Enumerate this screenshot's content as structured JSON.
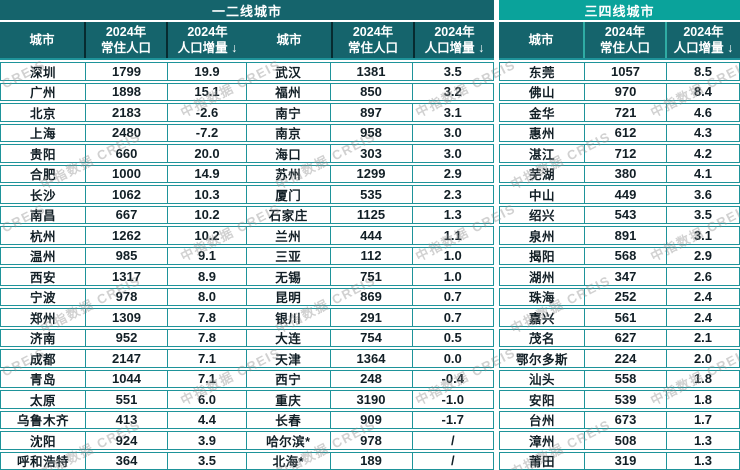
{
  "table": {
    "watermark": "中指数据 CREIS",
    "colors": {
      "header_dark_teal": "#15646c",
      "tier34_bright_teal": "#0aa39b",
      "row_border_teal": "#1e939a",
      "text_dark": "#121f26"
    },
    "header": {
      "city": "城市",
      "year": "2024年",
      "population": "常住人口",
      "delta": "人口增量",
      "sort_arrow": "↓"
    },
    "sections": [
      {
        "title": "一二线城市",
        "subtables": [
          {
            "rows": [
              [
                "深圳",
                "1799",
                "19.9"
              ],
              [
                "广州",
                "1898",
                "15.1"
              ],
              [
                "北京",
                "2183",
                "-2.6"
              ],
              [
                "上海",
                "2480",
                "-7.2"
              ],
              [
                "贵阳",
                "660",
                "20.0"
              ],
              [
                "合肥",
                "1000",
                "14.9"
              ],
              [
                "长沙",
                "1062",
                "10.3"
              ],
              [
                "南昌",
                "667",
                "10.2"
              ],
              [
                "杭州",
                "1262",
                "10.2"
              ],
              [
                "温州",
                "985",
                "9.1"
              ],
              [
                "西安",
                "1317",
                "8.9"
              ],
              [
                "宁波",
                "978",
                "8.0"
              ],
              [
                "郑州",
                "1309",
                "7.8"
              ],
              [
                "济南",
                "952",
                "7.8"
              ],
              [
                "成都",
                "2147",
                "7.1"
              ],
              [
                "青岛",
                "1044",
                "7.1"
              ],
              [
                "太原",
                "551",
                "6.0"
              ],
              [
                "乌鲁木齐",
                "413",
                "4.4"
              ],
              [
                "沈阳",
                "924",
                "3.9"
              ],
              [
                "呼和浩特",
                "364",
                "3.5"
              ]
            ]
          },
          {
            "rows": [
              [
                "武汉",
                "1381",
                "3.5"
              ],
              [
                "福州",
                "850",
                "3.2"
              ],
              [
                "南宁",
                "897",
                "3.1"
              ],
              [
                "南京",
                "958",
                "3.0"
              ],
              [
                "海口",
                "303",
                "3.0"
              ],
              [
                "苏州",
                "1299",
                "2.9"
              ],
              [
                "厦门",
                "535",
                "2.3"
              ],
              [
                "石家庄",
                "1125",
                "1.3"
              ],
              [
                "兰州",
                "444",
                "1.1"
              ],
              [
                "三亚",
                "112",
                "1.0"
              ],
              [
                "无锡",
                "751",
                "1.0"
              ],
              [
                "昆明",
                "869",
                "0.7"
              ],
              [
                "银川",
                "291",
                "0.7"
              ],
              [
                "大连",
                "754",
                "0.5"
              ],
              [
                "天津",
                "1364",
                "0.0"
              ],
              [
                "西宁",
                "248",
                "-0.4"
              ],
              [
                "重庆",
                "3190",
                "-1.0"
              ],
              [
                "长春",
                "909",
                "-1.7"
              ],
              [
                "哈尔滨*",
                "978",
                "/"
              ],
              [
                "北海*",
                "189",
                "/"
              ]
            ]
          }
        ]
      },
      {
        "title": "三四线城市",
        "subtables": [
          {
            "rows": [
              [
                "东莞",
                "1057",
                "8.5"
              ],
              [
                "佛山",
                "970",
                "8.4"
              ],
              [
                "金华",
                "721",
                "4.6"
              ],
              [
                "惠州",
                "612",
                "4.3"
              ],
              [
                "湛江",
                "712",
                "4.2"
              ],
              [
                "芜湖",
                "380",
                "4.1"
              ],
              [
                "中山",
                "449",
                "3.6"
              ],
              [
                "绍兴",
                "543",
                "3.5"
              ],
              [
                "泉州",
                "891",
                "3.1"
              ],
              [
                "揭阳",
                "568",
                "2.9"
              ],
              [
                "湖州",
                "347",
                "2.6"
              ],
              [
                "珠海",
                "252",
                "2.4"
              ],
              [
                "嘉兴",
                "561",
                "2.4"
              ],
              [
                "茂名",
                "627",
                "2.1"
              ],
              [
                "鄂尔多斯",
                "224",
                "2.0"
              ],
              [
                "汕头",
                "558",
                "1.8"
              ],
              [
                "安阳",
                "539",
                "1.8"
              ],
              [
                "台州",
                "673",
                "1.7"
              ],
              [
                "漳州",
                "508",
                "1.3"
              ],
              [
                "莆田",
                "319",
                "1.3"
              ]
            ]
          }
        ]
      }
    ]
  }
}
